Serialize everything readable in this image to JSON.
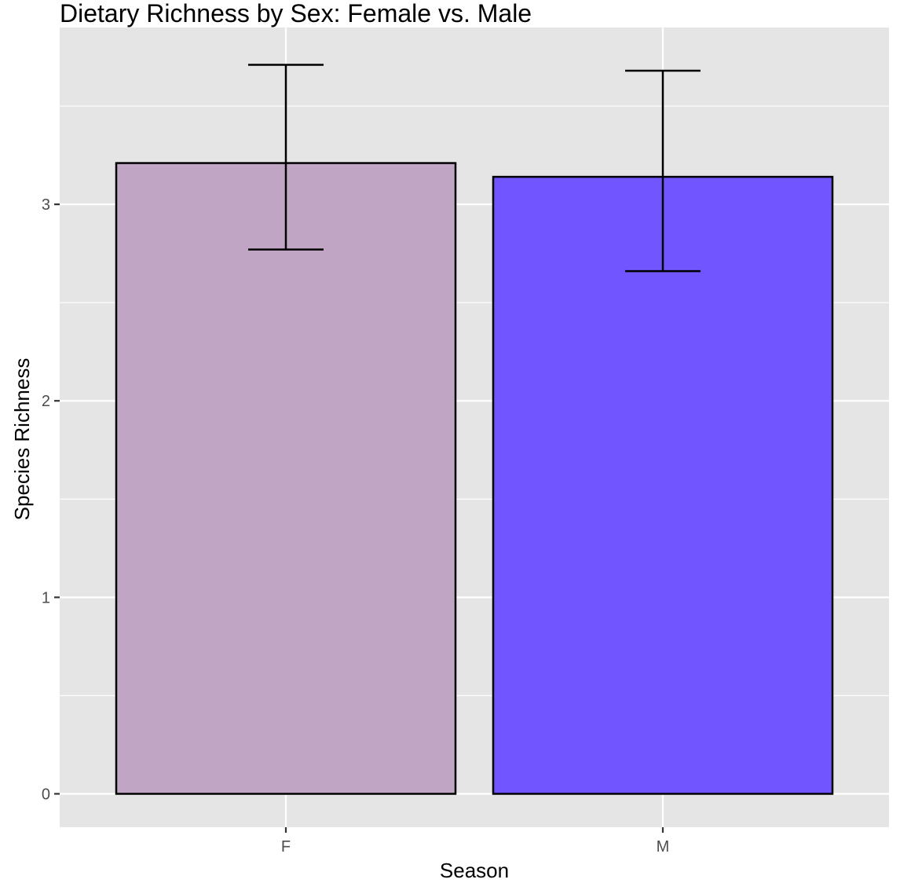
{
  "chart_data": {
    "type": "bar",
    "title": "Dietary Richness by Sex: Female vs. Male",
    "xlabel": "Season",
    "ylabel": "Species Richness",
    "categories": [
      "F",
      "M"
    ],
    "values": [
      3.21,
      3.14
    ],
    "error_bars": [
      {
        "low": 2.77,
        "high": 3.71
      },
      {
        "low": 2.66,
        "high": 3.68
      }
    ],
    "bar_colors": [
      "#c1a5c4",
      "#7155ff"
    ],
    "ylim": [
      -0.17,
      3.9
    ],
    "yticks": [
      0,
      1,
      2,
      3
    ],
    "grid": true,
    "panel_background": "#e5e5e5"
  }
}
